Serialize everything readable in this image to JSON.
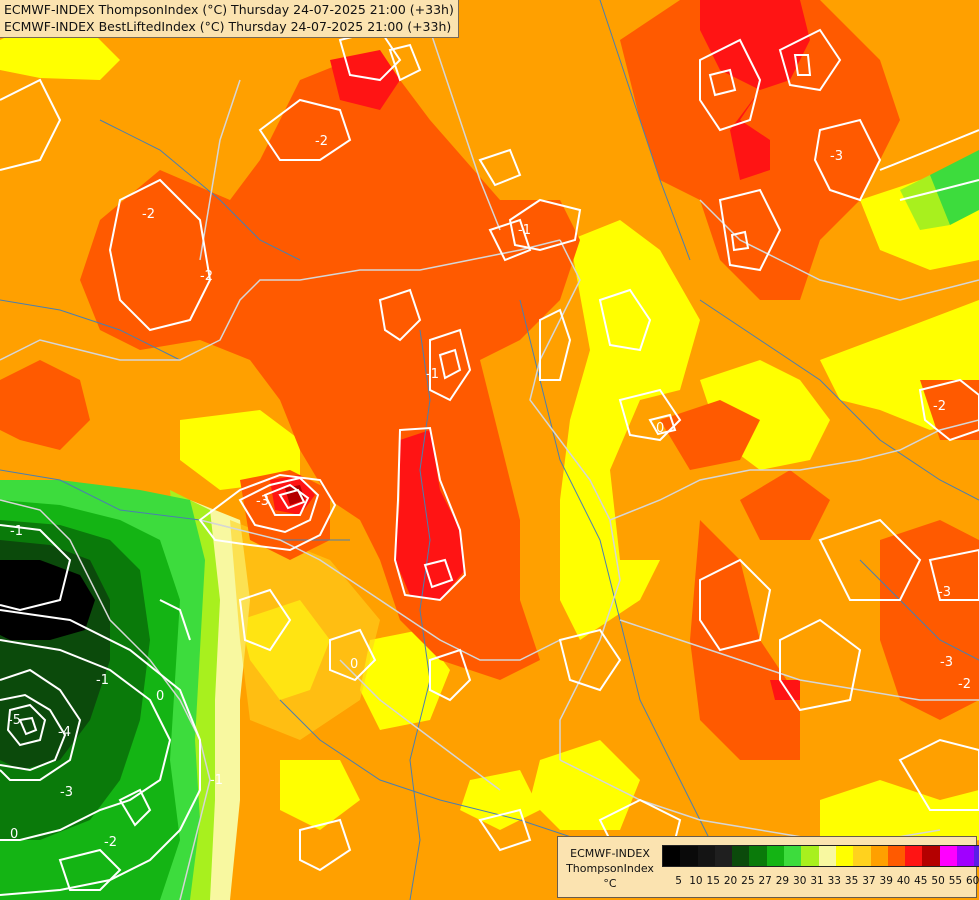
{
  "header": {
    "line1": "ECMWF-INDEX ThompsonIndex (°C) Thursday 24-07-2025 21:00 (+33h)",
    "line2": "ECMWF-INDEX BestLiftedIndex (°C) Thursday 24-07-2025 21:00 (+33h)"
  },
  "legend": {
    "line1": "ECMWF-INDEX",
    "line2": "ThompsonIndex",
    "unit": "°C",
    "ticks": [
      "5",
      "10",
      "15",
      "20",
      "25",
      "27",
      "29",
      "30",
      "31",
      "33",
      "35",
      "37",
      "39",
      "40",
      "45",
      "50",
      "55",
      "60"
    ],
    "colors": [
      "#000000",
      "#0a0a0a",
      "#141414",
      "#1f1f1f",
      "#0b4a0b",
      "#0a7a0a",
      "#14b414",
      "#3ddc3d",
      "#a8f01e",
      "#f8f8a0",
      "#ffff00",
      "#ffd21e",
      "#ffa000",
      "#ff5a00",
      "#ff1414",
      "#b40000",
      "#ff00ff",
      "#a000ff",
      "#5a1ee6",
      "#1414ff"
    ]
  },
  "contour_labels": [
    "-2",
    "-2",
    "-2",
    "-2",
    "-3",
    "-3",
    "-3",
    "-3",
    "-2",
    "-1",
    "-1",
    "0",
    "0",
    "-1",
    "0",
    "-1",
    "-4",
    "-3",
    "-2",
    "-5",
    "0",
    "-1"
  ],
  "colors": {
    "orange": "#ffa000",
    "dark_orange": "#ff5a00",
    "red": "#ff1414",
    "yellow": "#ffff00",
    "pale_yellow": "#f8f8a0",
    "gold": "#ffd21e",
    "lime": "#a8f01e",
    "green": "#3ddc3d",
    "dark_green": "#0b4a0b",
    "black": "#000000",
    "contour": "#ffffff",
    "border": "#c8c8c8",
    "river": "#4a7fb0"
  }
}
